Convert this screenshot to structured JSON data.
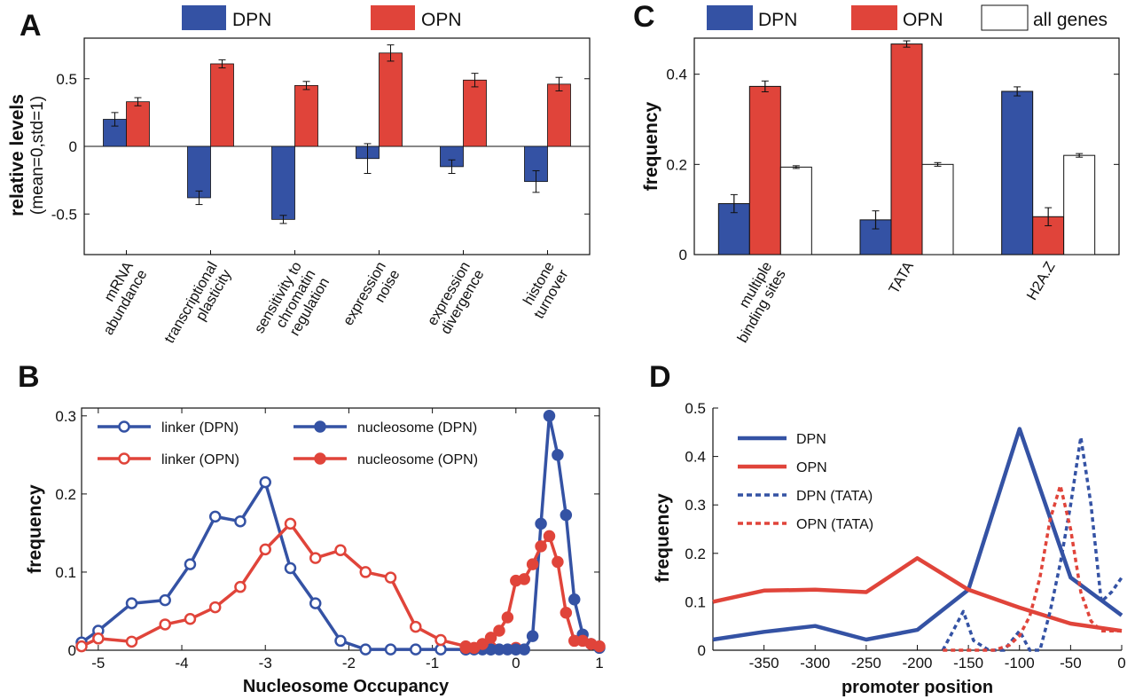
{
  "panels": {
    "A": "A",
    "B": "B",
    "C": "C",
    "D": "D"
  },
  "chart_data": [
    {
      "id": "A",
      "type": "bar",
      "ylabel": "relative levels",
      "ylabel_sub": "(mean=0,std=1)",
      "ylim": [
        -0.8,
        0.8
      ],
      "yticks": [
        -0.5,
        0,
        0.5
      ],
      "ytick_labels": [
        "-0.5",
        "0",
        "0.5"
      ],
      "legend_position": "top",
      "categories": [
        [
          "mRNA",
          "abundance"
        ],
        [
          "transcriptional",
          "plasticity"
        ],
        [
          "sensitivity to",
          "chromatin",
          "regulation"
        ],
        [
          "expression",
          "noise"
        ],
        [
          "expression",
          "divergence"
        ],
        [
          "histone",
          "turnover"
        ]
      ],
      "series": [
        {
          "name": "DPN",
          "color": "#3452a4",
          "values": [
            0.2,
            -0.38,
            -0.54,
            -0.09,
            -0.15,
            -0.26
          ],
          "errors": [
            0.05,
            0.05,
            0.03,
            0.11,
            0.05,
            0.08
          ]
        },
        {
          "name": "OPN",
          "color": "#e0443a",
          "values": [
            0.33,
            0.61,
            0.45,
            0.69,
            0.49,
            0.46
          ],
          "errors": [
            0.03,
            0.03,
            0.03,
            0.06,
            0.05,
            0.05
          ]
        }
      ]
    },
    {
      "id": "C",
      "type": "bar",
      "ylabel": "frequency",
      "ylim": [
        0,
        0.48
      ],
      "yticks": [
        0,
        0.2,
        0.4
      ],
      "ytick_labels": [
        "0",
        "0.2",
        "0.4"
      ],
      "legend_position": "top",
      "categories": [
        [
          "multiple",
          "binding sites"
        ],
        [
          "TATA"
        ],
        [
          "H2A.Z"
        ]
      ],
      "series": [
        {
          "name": "DPN",
          "color": "#3452a4",
          "values": [
            0.113,
            0.077,
            0.362
          ],
          "errors": [
            0.02,
            0.02,
            0.01
          ]
        },
        {
          "name": "OPN",
          "color": "#e0443a",
          "values": [
            0.373,
            0.467,
            0.084
          ],
          "errors": [
            0.012,
            0.007,
            0.02
          ]
        },
        {
          "name": "all genes",
          "color": "#ffffff",
          "values": [
            0.194,
            0.2,
            0.22
          ],
          "errors": [
            0.003,
            0.004,
            0.004
          ]
        }
      ]
    },
    {
      "id": "B",
      "type": "line",
      "xlabel": "Nucleosome Occupancy",
      "ylabel": "frequency",
      "xlim": [
        -5.2,
        1.0
      ],
      "ylim": [
        0,
        0.31
      ],
      "xticks": [
        -5,
        -4,
        -3,
        -2,
        -1,
        0,
        1
      ],
      "xtick_labels": [
        "-5",
        "-4",
        "-3",
        "-2",
        "-1",
        "0",
        "1"
      ],
      "yticks": [
        0,
        0.1,
        0.2,
        0.3
      ],
      "ytick_labels": [
        "0",
        "0.1",
        "0.2",
        "0.3"
      ],
      "legend_position": "top-left",
      "series": [
        {
          "name": "linker (DPN)",
          "color": "#3452a4",
          "marker": "open",
          "x": [
            -5.2,
            -5.0,
            -4.6,
            -4.2,
            -3.9,
            -3.6,
            -3.3,
            -3.0,
            -2.7,
            -2.4,
            -2.1,
            -1.8,
            -1.5,
            -1.2,
            -0.9,
            -0.6,
            -0.3,
            0.0
          ],
          "y": [
            0.01,
            0.025,
            0.06,
            0.064,
            0.11,
            0.171,
            0.165,
            0.215,
            0.105,
            0.06,
            0.012,
            0.001,
            0.001,
            0.001,
            0.001,
            0.001,
            0.001,
            0.001
          ]
        },
        {
          "name": "linker (OPN)",
          "color": "#e0443a",
          "marker": "open",
          "x": [
            -5.2,
            -5.0,
            -4.6,
            -4.2,
            -3.9,
            -3.6,
            -3.3,
            -3.0,
            -2.7,
            -2.4,
            -2.1,
            -1.8,
            -1.5,
            -1.2,
            -0.9,
            -0.6,
            -0.3,
            0.0
          ],
          "y": [
            0.005,
            0.015,
            0.011,
            0.033,
            0.04,
            0.055,
            0.081,
            0.129,
            0.162,
            0.118,
            0.128,
            0.1,
            0.093,
            0.03,
            0.013,
            0.005,
            0.004,
            0.003
          ]
        },
        {
          "name": "nucleosome (DPN)",
          "color": "#3452a4",
          "marker": "filled",
          "x": [
            -0.6,
            -0.5,
            -0.4,
            -0.3,
            -0.2,
            -0.1,
            0.0,
            0.1,
            0.2,
            0.3,
            0.4,
            0.5,
            0.6,
            0.7,
            0.8,
            0.9,
            1.0
          ],
          "y": [
            0.001,
            0.001,
            0.001,
            0.001,
            0.001,
            0.001,
            0.001,
            0.001,
            0.018,
            0.162,
            0.3,
            0.25,
            0.173,
            0.065,
            0.02,
            0.008,
            0.003
          ]
        },
        {
          "name": "nucleosome (OPN)",
          "color": "#e0443a",
          "marker": "filled",
          "x": [
            -0.6,
            -0.5,
            -0.4,
            -0.3,
            -0.2,
            -0.1,
            0.0,
            0.1,
            0.2,
            0.3,
            0.4,
            0.5,
            0.6,
            0.7,
            0.8,
            0.9,
            1.0
          ],
          "y": [
            0.003,
            0.003,
            0.008,
            0.016,
            0.025,
            0.042,
            0.089,
            0.091,
            0.11,
            0.133,
            0.146,
            0.113,
            0.048,
            0.012,
            0.012,
            0.008,
            0.005
          ]
        }
      ]
    },
    {
      "id": "D",
      "type": "line",
      "xlabel": "promoter position",
      "ylabel": "frequency",
      "xlim": [
        -400,
        0
      ],
      "ylim": [
        0,
        0.5
      ],
      "xticks": [
        -350,
        -300,
        -250,
        -200,
        -150,
        -100,
        -50,
        0
      ],
      "xtick_labels": [
        "-350",
        "-300",
        "-250",
        "-200",
        "-150",
        "-100",
        "-50",
        "0"
      ],
      "yticks": [
        0,
        0.1,
        0.2,
        0.3,
        0.4,
        0.5
      ],
      "ytick_labels": [
        "0",
        "0.1",
        "0.2",
        "0.3",
        "0.4",
        "0.5"
      ],
      "legend_position": "top-left",
      "series": [
        {
          "name": "DPN",
          "color": "#3452a4",
          "dash": false,
          "x": [
            -400,
            -350,
            -300,
            -250,
            -200,
            -150,
            -100,
            -50,
            0
          ],
          "y": [
            0.022,
            0.038,
            0.05,
            0.022,
            0.042,
            0.125,
            0.457,
            0.15,
            0.072
          ]
        },
        {
          "name": "OPN",
          "color": "#e0443a",
          "dash": false,
          "x": [
            -400,
            -350,
            -300,
            -250,
            -200,
            -150,
            -100,
            -50,
            0
          ],
          "y": [
            0.1,
            0.123,
            0.125,
            0.12,
            0.19,
            0.125,
            0.088,
            0.055,
            0.04
          ]
        },
        {
          "name": "DPN (TATA)",
          "color": "#3452a4",
          "dash": true,
          "x": [
            -175,
            -165,
            -155,
            -145,
            -130,
            -115,
            -100,
            -90,
            -80,
            -70,
            -60,
            -50,
            -40,
            -30,
            -20,
            -10,
            0
          ],
          "y": [
            0.0,
            0.04,
            0.08,
            0.02,
            0.0,
            0.0,
            0.04,
            0.0,
            0.0,
            0.08,
            0.18,
            0.3,
            0.44,
            0.3,
            0.1,
            0.12,
            0.15
          ]
        },
        {
          "name": "OPN (TATA)",
          "color": "#e0443a",
          "dash": true,
          "x": [
            -175,
            -150,
            -125,
            -110,
            -100,
            -90,
            -80,
            -70,
            -60,
            -50,
            -40,
            -30,
            -20,
            -10,
            0
          ],
          "y": [
            0.0,
            0.0,
            0.0,
            0.01,
            0.03,
            0.07,
            0.15,
            0.27,
            0.34,
            0.25,
            0.12,
            0.06,
            0.04,
            0.04,
            0.04
          ]
        }
      ]
    }
  ]
}
